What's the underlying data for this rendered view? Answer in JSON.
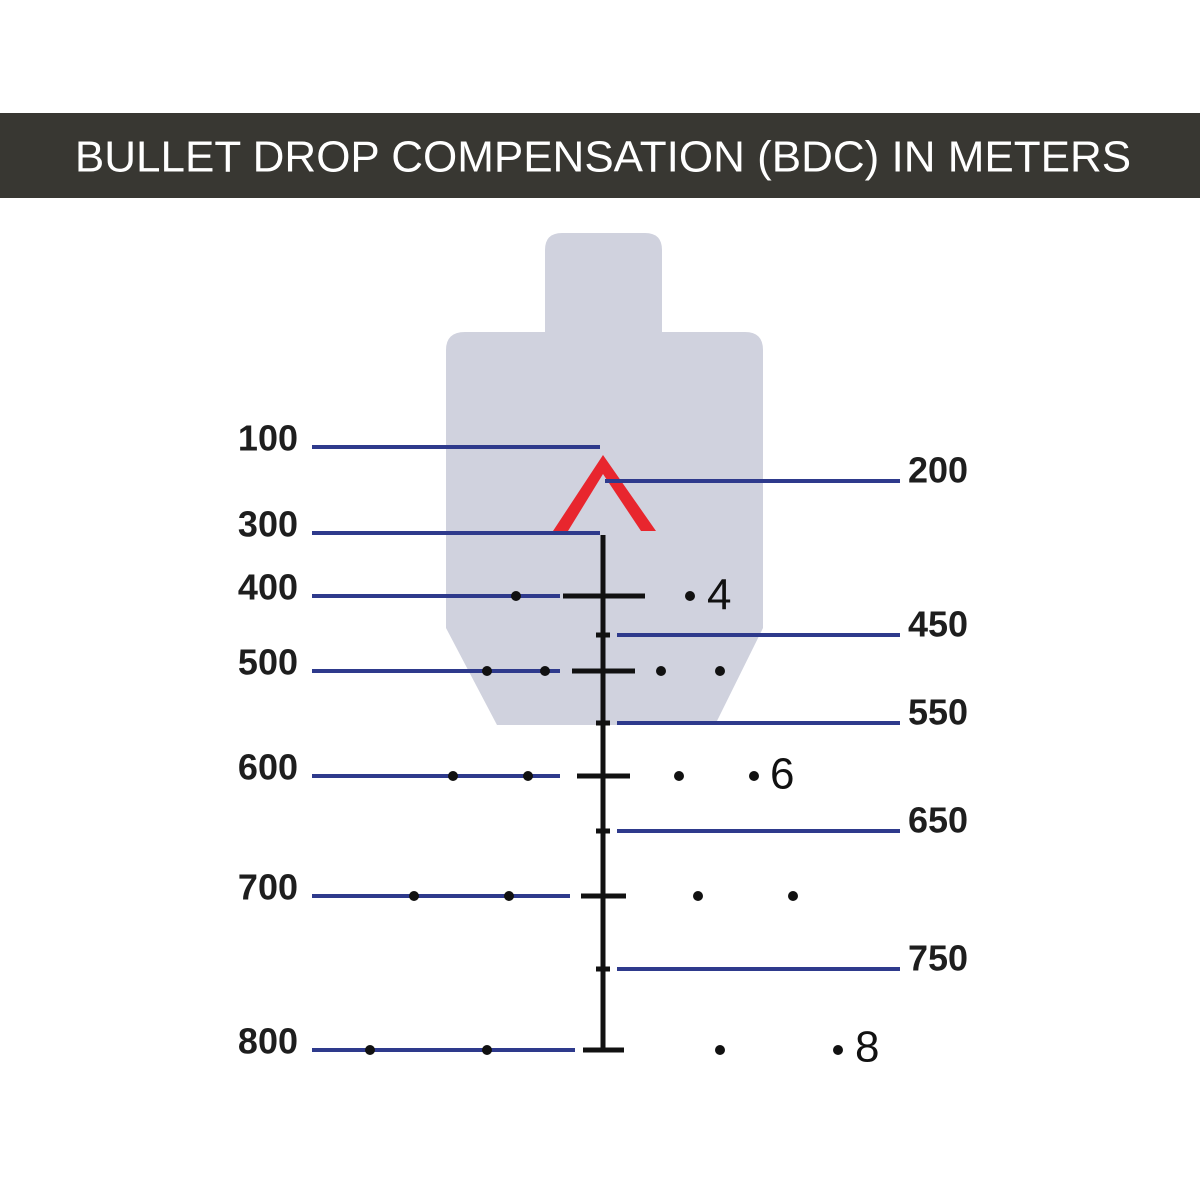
{
  "header": {
    "title": "BULLET DROP COMPENSATION (BDC) IN METERS"
  },
  "labels": {
    "left": [
      "100",
      "300",
      "400",
      "500",
      "600",
      "700",
      "800"
    ],
    "right": [
      "200",
      "450",
      "550",
      "650",
      "750"
    ]
  },
  "reticle": {
    "numbers": [
      "4",
      "6",
      "8"
    ]
  }
}
